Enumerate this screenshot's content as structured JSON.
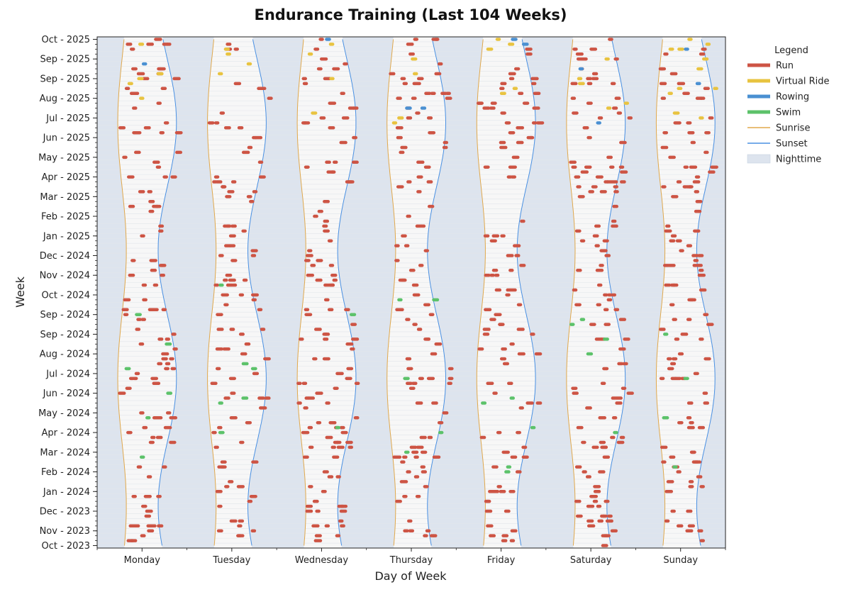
{
  "chart_data": {
    "type": "scatter",
    "title": "Endurance Training (Last 104 Weeks)",
    "xlabel": "Day of Week",
    "ylabel": "Week",
    "days": [
      "Monday",
      "Tuesday",
      "Wednesday",
      "Thursday",
      "Friday",
      "Saturday",
      "Sunday"
    ],
    "week_labels": [
      "Oct - 2025",
      "Sep - 2025",
      "Sep - 2025",
      "Aug - 2025",
      "Jul - 2025",
      "Jun - 2025",
      "May - 2025",
      "Apr - 2025",
      "Mar - 2025",
      "Feb - 2025",
      "Jan - 2025",
      "Dec - 2024",
      "Nov - 2024",
      "Oct - 2024",
      "Sep - 2024",
      "Sep - 2024",
      "Aug - 2024",
      "Jul - 2024",
      "Jun - 2024",
      "May - 2024",
      "Apr - 2024",
      "Mar - 2024",
      "Feb - 2024",
      "Jan - 2024",
      "Dec - 2023",
      "Nov - 2023",
      "Oct - 2023"
    ],
    "label_week_index": [
      0,
      4,
      8,
      12,
      16,
      20,
      24,
      28,
      32,
      36,
      40,
      44,
      48,
      52,
      56,
      60,
      64,
      68,
      72,
      76,
      80,
      84,
      88,
      92,
      96,
      100,
      103
    ],
    "num_weeks": 104,
    "x_range": [
      0,
      7
    ],
    "sunrise_hours": {
      "summer": 5.5,
      "winter": 7.8
    },
    "sunset_hours": {
      "summer": 21.2,
      "winter": 16.3
    },
    "series_colors": {
      "Run": "#cd5444",
      "Virtual Ride": "#e8c340",
      "Rowing": "#4a90d2",
      "Swim": "#5cc26a",
      "Sunrise": "#e0a84c",
      "Sunset": "#4a90e2",
      "Nighttime": "#dde4ee"
    },
    "legend": {
      "title": "Legend",
      "placement": "right",
      "entries": [
        "Run",
        "Virtual Ride",
        "Rowing",
        "Swim",
        "Sunrise",
        "Sunset",
        "Nighttime"
      ]
    },
    "activity_counts": {
      "Run": 780,
      "Virtual Ride": 38,
      "Rowing": 10,
      "Swim": 34
    }
  }
}
